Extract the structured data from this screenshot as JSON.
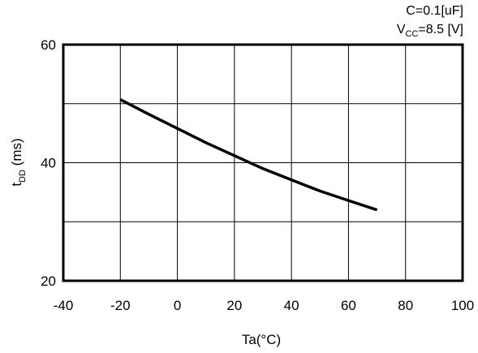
{
  "chart_data": {
    "type": "line",
    "xlabel": "Ta(°C)",
    "ylabel": {
      "main": "t",
      "sub": "DD",
      "unit": " (ms)"
    },
    "xlim": [
      -40,
      100
    ],
    "ylim": [
      20,
      60
    ],
    "x_ticks": [
      "-40",
      "-20",
      "0",
      "20",
      "40",
      "60",
      "80",
      "100"
    ],
    "x_tick_values": [
      -40,
      -20,
      0,
      20,
      40,
      60,
      80,
      100
    ],
    "y_ticks": [
      "20",
      "40",
      "60"
    ],
    "y_tick_values": [
      20,
      40,
      60
    ],
    "y_grid_values": [
      30,
      40,
      50
    ],
    "grid": true,
    "conditions": {
      "line1": "C=0.1[uF]",
      "line2_main": "V",
      "line2_sub": "CC",
      "line2_rest": "=8.5 [V]"
    },
    "series": [
      {
        "x": [
          -20,
          -10,
          0,
          10,
          20,
          30,
          40,
          50,
          60,
          70
        ],
        "y": [
          50.7,
          48.2,
          45.8,
          43.4,
          41.2,
          39.0,
          37.1,
          35.2,
          33.6,
          32.0
        ]
      }
    ]
  }
}
